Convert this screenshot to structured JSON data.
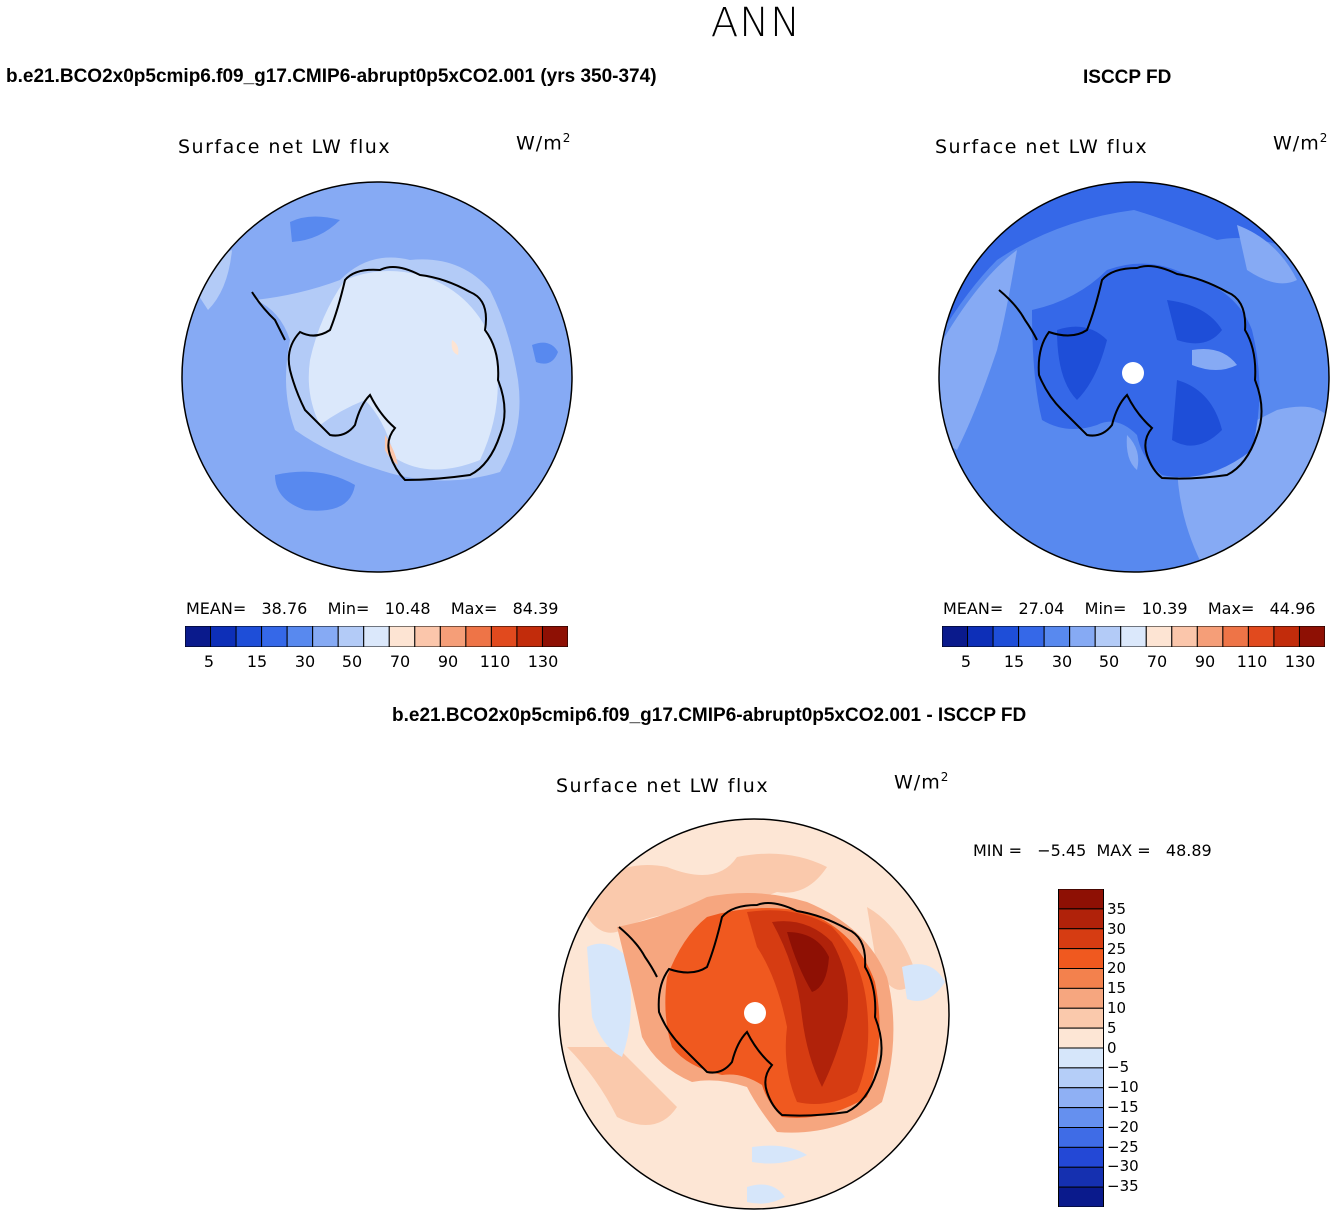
{
  "title": "ANN",
  "chart_data": [
    {
      "type": "map",
      "panel": "model",
      "case_title": "b.e21.BCO2x0p5cmip6.f09_g17.CMIP6-abrupt0p5xCO2.001 (yrs 350-374)",
      "variable": "Surface net LW flux",
      "units_base": "W/m",
      "units_exp": "2",
      "stats": {
        "mean_label": "MEAN=",
        "mean": "38.76",
        "min_label": "Min=",
        "min": "10.48",
        "max_label": "Max=",
        "max": "84.39"
      },
      "colorbar_ticks": [
        "5",
        "15",
        "30",
        "50",
        "70",
        "90",
        "110",
        "130"
      ],
      "colors": [
        "#0a1a8c",
        "#0d2fb8",
        "#1e4ed8",
        "#3568e8",
        "#5889ef",
        "#86aaf4",
        "#b3cbf7",
        "#dbe8fb",
        "#fde4d3",
        "#fbc6ab",
        "#f59e78",
        "#ee7447",
        "#e14a1e",
        "#c22c0b",
        "#8e1004"
      ]
    },
    {
      "type": "map",
      "panel": "obs",
      "case_title": "ISCCP FD",
      "variable": "Surface net LW flux",
      "units_base": "W/m",
      "units_exp": "2",
      "stats": {
        "mean_label": "MEAN=",
        "mean": "27.04",
        "min_label": "Min=",
        "min": "10.39",
        "max_label": "Max=",
        "max": "44.96"
      },
      "colorbar_ticks": [
        "5",
        "15",
        "30",
        "50",
        "70",
        "90",
        "110",
        "130"
      ],
      "colors": [
        "#0a1a8c",
        "#0d2fb8",
        "#1e4ed8",
        "#3568e8",
        "#5889ef",
        "#86aaf4",
        "#b3cbf7",
        "#dbe8fb",
        "#fde4d3",
        "#fbc6ab",
        "#f59e78",
        "#ee7447",
        "#e14a1e",
        "#c22c0b",
        "#8e1004"
      ]
    },
    {
      "type": "map",
      "panel": "difference",
      "case_title": "b.e21.BCO2x0p5cmip6.f09_g17.CMIP6-abrupt0p5xCO2.001 - ISCCP FD",
      "variable": "Surface net LW flux",
      "units_base": "W/m",
      "units_exp": "2",
      "stats": {
        "min_label": "MIN =",
        "min": "−5.45",
        "max_label": "MAX =",
        "max": "48.89"
      },
      "colorbar_ticks": [
        "35",
        "30",
        "25",
        "20",
        "15",
        "10",
        "5",
        "0",
        "−5",
        "−10",
        "−15",
        "−20",
        "−25",
        "−30",
        "−35"
      ],
      "colors": [
        "#8e1004",
        "#b0220a",
        "#d63c12",
        "#f0591f",
        "#f3814d",
        "#f6a67f",
        "#fac9ac",
        "#fde6d5",
        "#d6e6fa",
        "#b5cef8",
        "#8fb0f4",
        "#6590ef",
        "#3f6ce6",
        "#2348d6",
        "#1530b0",
        "#0a1a8c"
      ]
    }
  ]
}
